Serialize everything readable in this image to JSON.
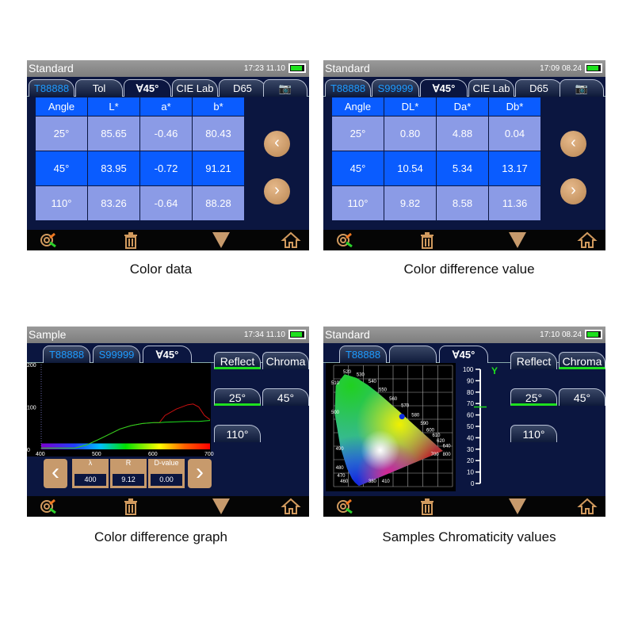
{
  "panels": [
    {
      "title": "Standard",
      "clock": "17:23 11.10",
      "tabs": [
        "T88888",
        "Tol",
        "∀45°",
        "CIE Lab",
        "D65"
      ],
      "table": {
        "headers": [
          "Angle",
          "L*",
          "a*",
          "b*"
        ],
        "rows": [
          [
            "25°",
            "85.65",
            "-0.46",
            "80.43"
          ],
          [
            "45°",
            "83.95",
            "-0.72",
            "91.21"
          ],
          [
            "110°",
            "83.26",
            "-0.64",
            "88.28"
          ]
        ]
      },
      "caption": "Color data"
    },
    {
      "title": "Standard",
      "clock": "17:09 08.24",
      "tabs": [
        "T88888",
        "S99999",
        "∀45°",
        "CIE Lab",
        "D65"
      ],
      "table": {
        "headers": [
          "Angle",
          "DL*",
          "Da*",
          "Db*"
        ],
        "rows": [
          [
            "25°",
            "0.80",
            "4.88",
            "0.04"
          ],
          [
            "45°",
            "10.54",
            "5.34",
            "13.17"
          ],
          [
            "110°",
            "9.82",
            "8.58",
            "11.36"
          ]
        ]
      },
      "caption": "Color difference value"
    },
    {
      "title": "Sample",
      "clock": "17:34 11.10",
      "tabs": [
        "T88888",
        "S99999",
        "∀45°"
      ],
      "mode_buttons": [
        "Reflect",
        "Chroma"
      ],
      "angle_buttons": [
        "25°",
        "45°",
        "110°"
      ],
      "readout": {
        "labels": [
          "λ",
          "R",
          "D-value"
        ],
        "values": [
          "400",
          "9.12",
          "0.00"
        ]
      },
      "caption": "Color difference graph"
    },
    {
      "title": "Standard",
      "clock": "17:10 08.24",
      "tabs": [
        "T88888",
        "",
        "∀45°"
      ],
      "mode_buttons": [
        "Reflect",
        "Chroma"
      ],
      "angle_buttons": [
        "25°",
        "45°",
        "110°"
      ],
      "caption": "Samples Chromaticity values"
    }
  ],
  "bottom_icons": [
    "target-search-icon",
    "trash-icon",
    "triangle-down-icon",
    "home-icon"
  ],
  "colors": {
    "accent_blue": "#0a5cff",
    "cell": "#8b9be6",
    "orange": "#c79a6c",
    "green": "#1ee01e",
    "bg": "#0b1640"
  },
  "chart_data": [
    {
      "type": "line",
      "xlim": [
        400,
        700
      ],
      "ylim": [
        0,
        200
      ],
      "xticks": [
        "400",
        "500",
        "600",
        "700"
      ],
      "yticks": [
        "0",
        "100",
        "200"
      ],
      "x": [
        400,
        460,
        480,
        500,
        520,
        540,
        560,
        580,
        600,
        610,
        620,
        640,
        660,
        670,
        680,
        690,
        700
      ],
      "series": [
        {
          "color": "#cc1010",
          "values": [
            3,
            3,
            10,
            22,
            35,
            48,
            56,
            61,
            63,
            63,
            80,
            95,
            105,
            107,
            100,
            80,
            70
          ]
        },
        {
          "color": "#1ee01e",
          "values": [
            3,
            3,
            10,
            22,
            35,
            48,
            56,
            61,
            63,
            63,
            64,
            65,
            66,
            66,
            66,
            67,
            68
          ]
        }
      ]
    },
    {
      "type": "scatter",
      "xlim": [
        0,
        0.8
      ],
      "ylim": [
        0,
        0.9
      ],
      "locus_labels": [
        "520",
        "530",
        "540",
        "550",
        "560",
        "570",
        "580",
        "590",
        "600",
        "610",
        "620",
        "640",
        "700",
        "800",
        "510",
        "500",
        "490",
        "480",
        "470",
        "460",
        "380",
        "410"
      ],
      "point": {
        "x": 0.46,
        "y": 0.52,
        "color": "#1030e0"
      },
      "y_scale": {
        "label": "Y",
        "ticks": [
          "0",
          "10",
          "20",
          "30",
          "40",
          "50",
          "60",
          "70",
          "80",
          "90",
          "100"
        ],
        "value": 67
      }
    }
  ]
}
